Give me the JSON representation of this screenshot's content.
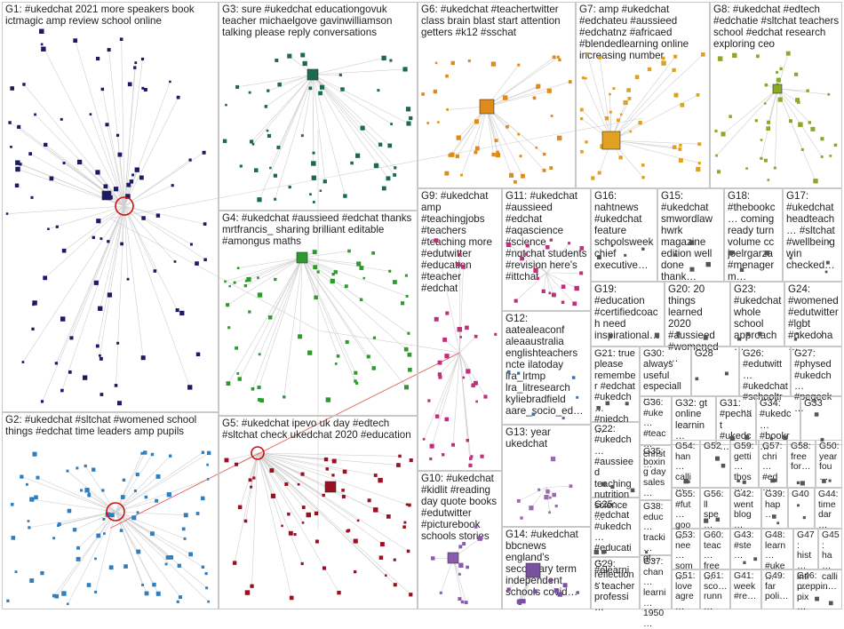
{
  "graph": {
    "groups": [
      {
        "id": "G1",
        "label": "G1: #ukedchat 2021 more speakers book ictmagic amp review school online",
        "color": "#1a1a66",
        "nodes": 95
      },
      {
        "id": "G2",
        "label": "G2: #ukedchat #sltchat #womened school things #edchat time leaders amp pupils",
        "color": "#2f7fc0",
        "nodes": 85
      },
      {
        "id": "G3",
        "label": "G3: sure #ukedchat educationgovuk teacher michaelgove gavinwilliamson talking please reply conversations",
        "color": "#1b6b4a",
        "nodes": 55
      },
      {
        "id": "G4",
        "label": "G4: #ukedchat #aussieed #edchat thanks mrtfrancis_ sharing brilliant editable #amongus maths",
        "color": "#2e9a2e",
        "nodes": 60
      },
      {
        "id": "G5",
        "label": "G5: #ukedchat ipevo uk day #edtech #sltchat check ukedchat 2020 #education",
        "color": "#9a1020",
        "nodes": 60
      },
      {
        "id": "G6",
        "label": "G6: #ukedchat #teachertwitter class brain blast start attention getters #k12 #sschat",
        "color": "#e08a1a",
        "nodes": 45
      },
      {
        "id": "G7",
        "label": "G7: amp #ukedchat #edchateu #aussieed #edchatnz #africaed #blendedlearning online increasing number",
        "color": "#e0a020",
        "nodes": 45
      },
      {
        "id": "G8",
        "label": "G8: #ukedchat #edtech #edchatie #sltchat teachers school #edchat research exploring ceo",
        "color": "#8aa82a",
        "nodes": 40
      },
      {
        "id": "G9",
        "label": "G9: #ukedchat amp #teachingjobs #teachers #teaching more #edutwitter #education #teacher #edchat",
        "color": "#c0307a",
        "nodes": 35
      },
      {
        "id": "G10",
        "label": "G10: #ukedchat #kidlit #reading day quote books #edutwitter #picturebook schools stories",
        "color": "#8a5ab0",
        "nodes": 12
      },
      {
        "id": "G11",
        "label": "G11: #ukedchat #aussieed #edchat #aqascience #science #nqtchat students #revision here's #ittchat",
        "color": "#c0307a",
        "nodes": 20
      },
      {
        "id": "G12",
        "label": "G12: aatealeaconf aleaaustralia englishteachers ncte ilatoday lra_lrtmp lra_litresearch kyliebradfield aare_socio_ed…",
        "color": "#3a70b0",
        "nodes": 6
      },
      {
        "id": "G13",
        "label": "G13: year ukedchat",
        "color": "#9a6ab0",
        "nodes": 12
      },
      {
        "id": "G14",
        "label": "G14: #ukedchat bbcnews england's secondary term independent schools covid…",
        "color": "#7a50a0",
        "nodes": 12
      },
      {
        "id": "G15",
        "label": "G15: #ukedchat smwordlaw hwrk magazine edition well done thank…",
        "color": "#555555",
        "nodes": 4
      },
      {
        "id": "G16",
        "label": "G16: nahtnews #ukedchat feature schoolsweek chief executive…",
        "color": "#555555",
        "nodes": 4
      },
      {
        "id": "G17",
        "label": "G17: #ukedchat headteach… #sltchat #wellbeing win checked…",
        "color": "#555555",
        "nodes": 4
      },
      {
        "id": "G18",
        "label": "G18: #thebookc… coming ready turn volume cc joelrgarza #menagerm…",
        "color": "#555555",
        "nodes": 4
      },
      {
        "id": "G19",
        "label": "G19: #education #certifiedcoach need inspirational…",
        "color": "#555555",
        "nodes": 3
      },
      {
        "id": "G20",
        "label": "G20: 20 things learned 2020 #aussieed #womened…",
        "color": "#555555",
        "nodes": 3
      },
      {
        "id": "G21",
        "label": "G21: true please remember #edchat #ukedch… #niedch…",
        "color": "#555555",
        "nodes": 3
      },
      {
        "id": "G22",
        "label": "G22: #ukedch… #aussieed teaching nutrition science…",
        "color": "#555555",
        "nodes": 3
      },
      {
        "id": "G23",
        "label": "G23: #ukedchat whole school approach…",
        "color": "#555555",
        "nodes": 3
      },
      {
        "id": "G24",
        "label": "G24: #womened #edutwitter #lgbt #ukedcha…",
        "color": "#555555",
        "nodes": 3
      },
      {
        "id": "G25",
        "label": "G25: #edchat #ukedch… #educati… #elearni…",
        "color": "#555555",
        "nodes": 3
      },
      {
        "id": "G26",
        "label": "G26: #edutwitt… #ukedchat #schooltr…",
        "color": "#555555",
        "nodes": 3
      },
      {
        "id": "G27",
        "label": "G27: #physed #ukedch… #pegeek…",
        "color": "#555555",
        "nodes": 3
      },
      {
        "id": "G28",
        "label": "G28",
        "color": "#555555",
        "nodes": 2
      },
      {
        "id": "G29",
        "label": "G29: reflections teacher professi…",
        "color": "#555555",
        "nodes": 2
      },
      {
        "id": "G30",
        "label": "G30: always useful especiall…",
        "color": "#555555",
        "nodes": 2
      },
      {
        "id": "G31",
        "label": "G31: #pechat #ukedc…",
        "color": "#555555",
        "nodes": 2
      },
      {
        "id": "G32",
        "label": "G32: gt online learnin…",
        "color": "#555555",
        "nodes": 2
      },
      {
        "id": "G33",
        "label": "G33",
        "color": "#555555",
        "nodes": 2
      },
      {
        "id": "G34",
        "label": "G34: #ukedc… #bookr…",
        "color": "#555555",
        "nodes": 2
      },
      {
        "id": "G35",
        "label": "G35: boxing day sales…",
        "color": "#555555",
        "nodes": 2
      },
      {
        "id": "G36",
        "label": "G36: #uke… #teac… christ…",
        "color": "#555555",
        "nodes": 2
      },
      {
        "id": "G37",
        "label": "G37: chan… learni… 1950…",
        "color": "#555555",
        "nodes": 2
      },
      {
        "id": "G38",
        "label": "G38: educ… tracki… gt…",
        "color": "#555555",
        "nodes": 2
      },
      {
        "id": "G39",
        "label": "G39: hap…",
        "color": "#555555",
        "nodes": 2
      },
      {
        "id": "G40",
        "label": "G40",
        "color": "#555555",
        "nodes": 2
      },
      {
        "id": "G41",
        "label": "G41: week #re…",
        "color": "#555555",
        "nodes": 2
      },
      {
        "id": "G42",
        "label": "G42: went blog…",
        "color": "#555555",
        "nodes": 2
      },
      {
        "id": "G43",
        "label": "G43: #ste…",
        "color": "#555555",
        "nodes": 2
      },
      {
        "id": "G44",
        "label": "G44: time dar…",
        "color": "#555555",
        "nodes": 2
      },
      {
        "id": "G45",
        "label": "G45: ha… calli…",
        "color": "#555555",
        "nodes": 2
      },
      {
        "id": "G46",
        "label": "G46: preppin…",
        "color": "#555555",
        "nodes": 2
      },
      {
        "id": "G47",
        "label": "G47: hist… intr… pix…",
        "color": "#555555",
        "nodes": 2
      },
      {
        "id": "G48",
        "label": "G48: learn… #uke…",
        "color": "#555555",
        "nodes": 2
      },
      {
        "id": "G49",
        "label": "G49: far poli…",
        "color": "#555555",
        "nodes": 2
      },
      {
        "id": "G50",
        "label": "G50: year fou…",
        "color": "#555555",
        "nodes": 2
      },
      {
        "id": "G51",
        "label": "G51: love agre…",
        "color": "#555555",
        "nodes": 2
      },
      {
        "id": "G52",
        "label": "G52",
        "color": "#555555",
        "nodes": 2
      },
      {
        "id": "G53",
        "label": "G53: nee… som…",
        "color": "#555555",
        "nodes": 2
      },
      {
        "id": "G54",
        "label": "G54: han… calli…",
        "color": "#555555",
        "nodes": 2
      },
      {
        "id": "G55",
        "label": "G55: #fut… goo…",
        "color": "#555555",
        "nodes": 2
      },
      {
        "id": "G56",
        "label": "G56: ll spe…",
        "color": "#555555",
        "nodes": 2
      },
      {
        "id": "G57",
        "label": "G57: chri… #ed…",
        "color": "#555555",
        "nodes": 2
      },
      {
        "id": "G58",
        "label": "G58: free for…",
        "color": "#555555",
        "nodes": 2
      },
      {
        "id": "G59",
        "label": "G59: getti… thos…",
        "color": "#555555",
        "nodes": 2
      },
      {
        "id": "G60",
        "label": "G60: teac… free…",
        "color": "#555555",
        "nodes": 2
      },
      {
        "id": "G61",
        "label": "G61: sco… runn…",
        "color": "#555555",
        "nodes": 2
      }
    ]
  }
}
